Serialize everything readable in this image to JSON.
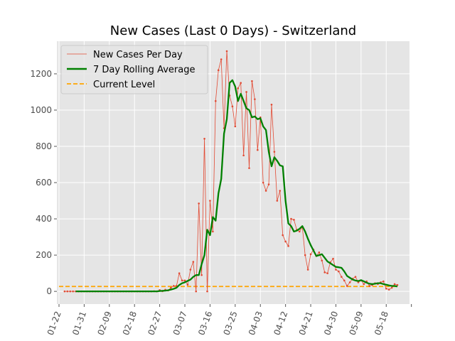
{
  "chart_data": {
    "type": "line",
    "title": "New Cases (Last 0 Days) - Switzerland",
    "xlabel": "",
    "ylabel": "",
    "x_ticks": [
      "01-22",
      "01-31",
      "02-09",
      "02-18",
      "02-27",
      "03-07",
      "03-16",
      "03-25",
      "04-03",
      "04-12",
      "04-21",
      "04-30",
      "05-09",
      "05-18"
    ],
    "x_start_date": "2020-01-22",
    "ylim": [
      -70,
      1380
    ],
    "y_ticks": [
      0,
      200,
      400,
      600,
      800,
      1000,
      1200
    ],
    "grid": true,
    "legend": "top-left",
    "series": [
      {
        "name": "New Cases Per Day",
        "style": "thin line with dot markers",
        "color": "#e24a33",
        "points": [
          [
            "01-24",
            0
          ],
          [
            "01-25",
            0
          ],
          [
            "01-26",
            0
          ],
          [
            "01-27",
            0
          ],
          [
            "01-28",
            0
          ],
          [
            "01-29",
            0
          ],
          [
            "01-30",
            0
          ],
          [
            "01-31",
            0
          ],
          [
            "02-01",
            0
          ],
          [
            "02-02",
            0
          ],
          [
            "02-03",
            0
          ],
          [
            "02-04",
            0
          ],
          [
            "02-05",
            0
          ],
          [
            "02-06",
            0
          ],
          [
            "02-07",
            0
          ],
          [
            "02-08",
            0
          ],
          [
            "02-09",
            0
          ],
          [
            "02-10",
            0
          ],
          [
            "02-11",
            0
          ],
          [
            "02-12",
            0
          ],
          [
            "02-13",
            0
          ],
          [
            "02-14",
            0
          ],
          [
            "02-15",
            0
          ],
          [
            "02-16",
            0
          ],
          [
            "02-17",
            0
          ],
          [
            "02-18",
            0
          ],
          [
            "02-19",
            0
          ],
          [
            "02-20",
            0
          ],
          [
            "02-21",
            0
          ],
          [
            "02-22",
            0
          ],
          [
            "02-23",
            0
          ],
          [
            "02-24",
            0
          ],
          [
            "02-25",
            1
          ],
          [
            "02-26",
            0
          ],
          [
            "02-27",
            7
          ],
          [
            "02-28",
            1
          ],
          [
            "02-29",
            9
          ],
          [
            "03-01",
            5
          ],
          [
            "03-02",
            20
          ],
          [
            "03-03",
            30
          ],
          [
            "03-04",
            30
          ],
          [
            "03-05",
            100
          ],
          [
            "03-06",
            60
          ],
          [
            "03-07",
            60
          ],
          [
            "03-08",
            37
          ],
          [
            "03-09",
            120
          ],
          [
            "03-10",
            163
          ],
          [
            "03-11",
            0
          ],
          [
            "03-12",
            485
          ],
          [
            "03-13",
            90
          ],
          [
            "03-14",
            842
          ],
          [
            "03-15",
            0
          ],
          [
            "03-16",
            500
          ],
          [
            "03-17",
            330
          ],
          [
            "03-18",
            1050
          ],
          [
            "03-19",
            1220
          ],
          [
            "03-20",
            1280
          ],
          [
            "03-21",
            900
          ],
          [
            "03-22",
            1325
          ],
          [
            "03-23",
            1080
          ],
          [
            "03-24",
            1020
          ],
          [
            "03-25",
            910
          ],
          [
            "03-26",
            1120
          ],
          [
            "03-27",
            1150
          ],
          [
            "03-28",
            750
          ],
          [
            "03-29",
            1100
          ],
          [
            "03-30",
            680
          ],
          [
            "03-31",
            1160
          ],
          [
            "04-01",
            1060
          ],
          [
            "04-02",
            780
          ],
          [
            "04-03",
            960
          ],
          [
            "04-04",
            600
          ],
          [
            "04-05",
            555
          ],
          [
            "04-06",
            590
          ],
          [
            "04-07",
            1030
          ],
          [
            "04-08",
            770
          ],
          [
            "04-09",
            500
          ],
          [
            "04-10",
            555
          ],
          [
            "04-11",
            310
          ],
          [
            "04-12",
            275
          ],
          [
            "04-13",
            250
          ],
          [
            "04-14",
            400
          ],
          [
            "04-15",
            395
          ],
          [
            "04-16",
            340
          ],
          [
            "04-17",
            330
          ],
          [
            "04-18",
            355
          ],
          [
            "04-19",
            200
          ],
          [
            "04-20",
            120
          ],
          [
            "04-21",
            205
          ],
          [
            "04-22",
            230
          ],
          [
            "04-23",
            195
          ],
          [
            "04-24",
            215
          ],
          [
            "04-25",
            170
          ],
          [
            "04-26",
            105
          ],
          [
            "04-27",
            100
          ],
          [
            "04-28",
            160
          ],
          [
            "04-29",
            180
          ],
          [
            "04-30",
            120
          ],
          [
            "05-01",
            110
          ],
          [
            "05-02",
            80
          ],
          [
            "05-03",
            60
          ],
          [
            "05-04",
            30
          ],
          [
            "05-05",
            50
          ],
          [
            "05-06",
            70
          ],
          [
            "05-07",
            80
          ],
          [
            "05-08",
            50
          ],
          [
            "05-09",
            60
          ],
          [
            "05-10",
            40
          ],
          [
            "05-11",
            55
          ],
          [
            "05-12",
            30
          ],
          [
            "05-13",
            35
          ],
          [
            "05-14",
            45
          ],
          [
            "05-15",
            40
          ],
          [
            "05-16",
            50
          ],
          [
            "05-17",
            55
          ],
          [
            "05-18",
            15
          ],
          [
            "05-19",
            10
          ],
          [
            "05-20",
            20
          ],
          [
            "05-21",
            40
          ],
          [
            "05-22",
            35
          ]
        ]
      },
      {
        "name": "7 Day Rolling Average",
        "style": "thick line",
        "color": "#008000",
        "points": [
          [
            "01-28",
            0
          ],
          [
            "02-26",
            0
          ],
          [
            "02-27",
            2
          ],
          [
            "02-28",
            3
          ],
          [
            "02-29",
            4
          ],
          [
            "03-01",
            6
          ],
          [
            "03-02",
            10
          ],
          [
            "03-03",
            14
          ],
          [
            "03-04",
            20
          ],
          [
            "03-05",
            35
          ],
          [
            "03-06",
            45
          ],
          [
            "03-07",
            50
          ],
          [
            "03-08",
            58
          ],
          [
            "03-09",
            65
          ],
          [
            "03-10",
            80
          ],
          [
            "03-11",
            90
          ],
          [
            "03-12",
            90
          ],
          [
            "03-13",
            150
          ],
          [
            "03-14",
            200
          ],
          [
            "03-15",
            340
          ],
          [
            "03-16",
            310
          ],
          [
            "03-17",
            410
          ],
          [
            "03-18",
            390
          ],
          [
            "03-19",
            540
          ],
          [
            "03-20",
            620
          ],
          [
            "03-21",
            870
          ],
          [
            "03-22",
            950
          ],
          [
            "03-23",
            1150
          ],
          [
            "03-24",
            1165
          ],
          [
            "03-25",
            1130
          ],
          [
            "03-26",
            1050
          ],
          [
            "03-27",
            1090
          ],
          [
            "03-28",
            1050
          ],
          [
            "03-29",
            1010
          ],
          [
            "03-30",
            1000
          ],
          [
            "03-31",
            960
          ],
          [
            "04-01",
            965
          ],
          [
            "04-02",
            950
          ],
          [
            "04-03",
            955
          ],
          [
            "04-04",
            910
          ],
          [
            "04-05",
            890
          ],
          [
            "04-06",
            770
          ],
          [
            "04-07",
            690
          ],
          [
            "04-08",
            740
          ],
          [
            "04-09",
            720
          ],
          [
            "04-10",
            695
          ],
          [
            "04-11",
            690
          ],
          [
            "04-12",
            500
          ],
          [
            "04-13",
            375
          ],
          [
            "04-14",
            360
          ],
          [
            "04-15",
            330
          ],
          [
            "04-16",
            335
          ],
          [
            "04-17",
            345
          ],
          [
            "04-18",
            360
          ],
          [
            "04-19",
            330
          ],
          [
            "04-20",
            290
          ],
          [
            "04-21",
            255
          ],
          [
            "04-22",
            225
          ],
          [
            "04-23",
            195
          ],
          [
            "04-24",
            200
          ],
          [
            "04-25",
            205
          ],
          [
            "04-26",
            185
          ],
          [
            "04-27",
            165
          ],
          [
            "04-28",
            155
          ],
          [
            "04-29",
            145
          ],
          [
            "04-30",
            135
          ],
          [
            "05-01",
            133
          ],
          [
            "05-02",
            130
          ],
          [
            "05-03",
            110
          ],
          [
            "05-04",
            85
          ],
          [
            "05-05",
            75
          ],
          [
            "05-06",
            65
          ],
          [
            "05-07",
            60
          ],
          [
            "05-08",
            57
          ],
          [
            "05-09",
            62
          ],
          [
            "05-10",
            55
          ],
          [
            "05-11",
            48
          ],
          [
            "05-12",
            42
          ],
          [
            "05-13",
            40
          ],
          [
            "05-14",
            42
          ],
          [
            "05-15",
            45
          ],
          [
            "05-16",
            45
          ],
          [
            "05-17",
            40
          ],
          [
            "05-18",
            37
          ],
          [
            "05-19",
            33
          ],
          [
            "05-20",
            30
          ],
          [
            "05-21",
            30
          ],
          [
            "05-22",
            27
          ]
        ]
      },
      {
        "name": "Current Level",
        "style": "dashed line",
        "color": "#ffa500",
        "points": [
          [
            "01-22",
            27
          ],
          [
            "05-22",
            27
          ]
        ]
      }
    ]
  }
}
